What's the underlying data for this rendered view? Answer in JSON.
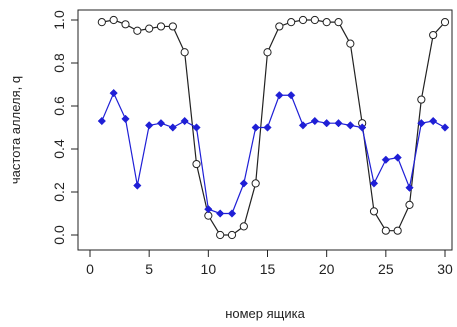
{
  "chart_data": {
    "type": "line",
    "xlabel": "номер ящика",
    "ylabel": "частота аллеля, q",
    "xlim": [
      1,
      30
    ],
    "ylim": [
      0,
      1
    ],
    "x_ticks": [
      0,
      5,
      10,
      15,
      20,
      25,
      30
    ],
    "y_ticks": [
      0.0,
      0.2,
      0.4,
      0.6,
      0.8,
      1.0
    ],
    "y_tick_labels": [
      "0.0",
      "0.2",
      "0.4",
      "0.6",
      "0.8",
      "1.0"
    ],
    "grid": false,
    "x": [
      1,
      2,
      3,
      4,
      5,
      6,
      7,
      8,
      9,
      10,
      11,
      12,
      13,
      14,
      15,
      16,
      17,
      18,
      19,
      20,
      21,
      22,
      23,
      24,
      25,
      26,
      27,
      28,
      29,
      30
    ],
    "series": [
      {
        "color": "#222222",
        "marker": "open-circle",
        "values": [
          0.99,
          1.0,
          0.98,
          0.95,
          0.96,
          0.97,
          0.97,
          0.85,
          0.33,
          0.09,
          0.0,
          0.0,
          0.04,
          0.24,
          0.85,
          0.97,
          0.99,
          1.0,
          1.0,
          0.99,
          0.99,
          0.89,
          0.52,
          0.11,
          0.02,
          0.02,
          0.14,
          0.63,
          0.93,
          0.99
        ]
      },
      {
        "color": "#1f1fd6",
        "marker": "filled-diamond",
        "values": [
          0.53,
          0.66,
          0.54,
          0.23,
          0.51,
          0.52,
          0.5,
          0.53,
          0.5,
          0.12,
          0.1,
          0.1,
          0.24,
          0.5,
          0.5,
          0.65,
          0.65,
          0.51,
          0.53,
          0.52,
          0.52,
          0.51,
          0.5,
          0.24,
          0.35,
          0.36,
          0.22,
          0.52,
          0.53,
          0.5
        ]
      }
    ]
  }
}
